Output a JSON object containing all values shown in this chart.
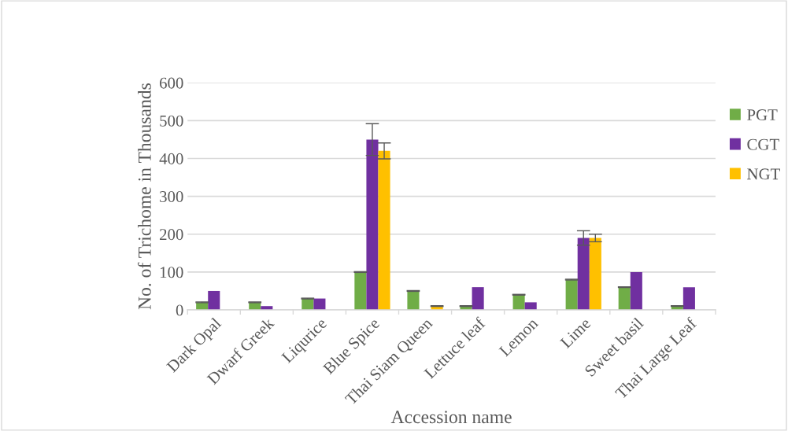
{
  "chart_data": {
    "type": "bar",
    "xlabel": "Accession name",
    "ylabel": "No. of Trichome in Thousands",
    "categories": [
      "Dark Opal",
      "Dwarf Greek",
      "Liqurice",
      "Blue Spice",
      "Thai Siam Queen",
      "Lettuce leaf",
      "Lemon",
      "Lime",
      "Sweet basil",
      "Thai Large Leaf"
    ],
    "series": [
      {
        "name": "PGT",
        "color": "#70ad47",
        "values": [
          20,
          20,
          30,
          100,
          50,
          10,
          40,
          80,
          60,
          10
        ],
        "errors": [
          1,
          1,
          1,
          1,
          1,
          1,
          1,
          1,
          1,
          1
        ]
      },
      {
        "name": "CGT",
        "color": "#7030a0",
        "values": [
          50,
          10,
          30,
          450,
          null,
          60,
          20,
          190,
          100,
          60
        ],
        "errors": [
          null,
          null,
          null,
          42,
          null,
          null,
          null,
          19,
          null,
          null
        ]
      },
      {
        "name": "NGT",
        "color": "#ffc000",
        "values": [
          null,
          null,
          null,
          420,
          10,
          null,
          null,
          190,
          null,
          null
        ],
        "errors": [
          null,
          null,
          null,
          21,
          1,
          null,
          null,
          10,
          null,
          null
        ]
      }
    ],
    "ylim": [
      0,
      600
    ],
    "yticks": [
      0,
      100,
      200,
      300,
      400,
      500,
      600
    ],
    "grid": "y",
    "legend": "top right"
  }
}
